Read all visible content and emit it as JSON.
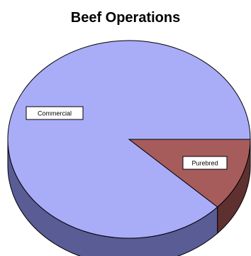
{
  "chart_data": {
    "type": "pie",
    "title": "Beef Operations",
    "style": "3d",
    "slices": [
      {
        "label": "Commercial",
        "value": 88,
        "color": "#a9acf7",
        "side_color": "#5a5c95"
      },
      {
        "label": "Purebred",
        "value": 12,
        "color": "#a75c5c",
        "side_color": "#5e3030"
      }
    ],
    "legend": "none",
    "labels": "inside boxes"
  }
}
